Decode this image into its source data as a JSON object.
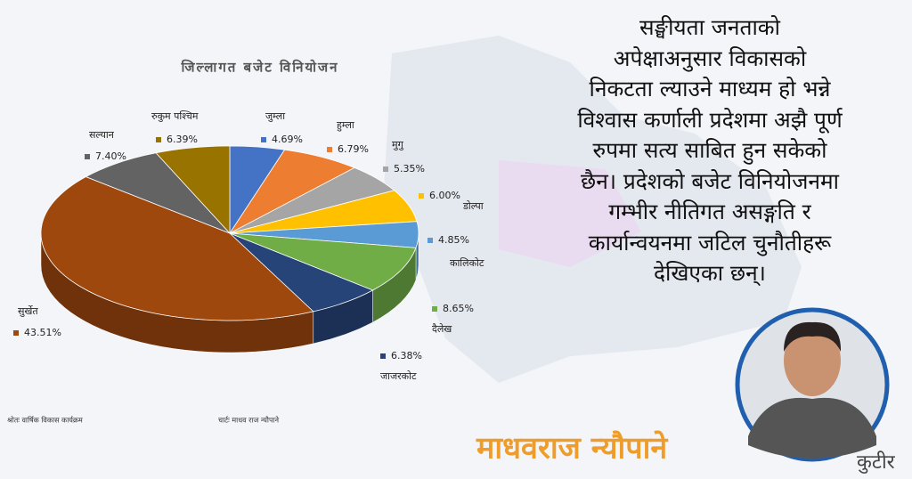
{
  "chart_data": {
    "type": "pie",
    "title": "जिल्लागत बजेट विनियोजन",
    "categories": [
      "जुम्ला",
      "हुम्ला",
      "मुगु",
      "डोल्पा",
      "कालिकोट",
      "दैलेख",
      "जाजरकोट",
      "सुर्खेत",
      "सल्यान",
      "रुकुम पश्चिम"
    ],
    "values": [
      4.69,
      6.79,
      5.35,
      6.0,
      4.85,
      8.65,
      6.38,
      43.51,
      7.4,
      6.39
    ],
    "value_labels": [
      "4.69%",
      "6.79%",
      "5.35%",
      "6.00%",
      "4.85%",
      "8.65%",
      "6.38%",
      "43.51%",
      "7.40%",
      "6.39%"
    ],
    "colors": [
      "#4472c4",
      "#ed7d31",
      "#a5a5a5",
      "#ffc000",
      "#5b9bd5",
      "#70ad47",
      "#264478",
      "#9e480e",
      "#636363",
      "#997300"
    ],
    "source": "श्रोतः वार्षिक विकास कार्यक्रम",
    "credit": "चार्टः माधव राज न्यौपाने"
  },
  "article": {
    "lines": [
      "सङ्घीयता जनताको",
      "अपेक्षाअनुसार विकासको",
      "निकटता ल्याउने माध्यम हो भन्ने",
      "विश्वास कर्णाली प्रदेशमा अझै पूर्ण",
      "रुपमा सत्य साबित हुन सकेको",
      "छैन। प्रदेशको बजेट विनियोजनमा",
      "गम्भीर नीतिगत असङ्गति र",
      "कार्यान्वयनमा जटिल चुनौतीहरू",
      "देखिएका छन्।"
    ],
    "author": "माधवराज न्यौपाने",
    "logo": "कुटीर"
  }
}
